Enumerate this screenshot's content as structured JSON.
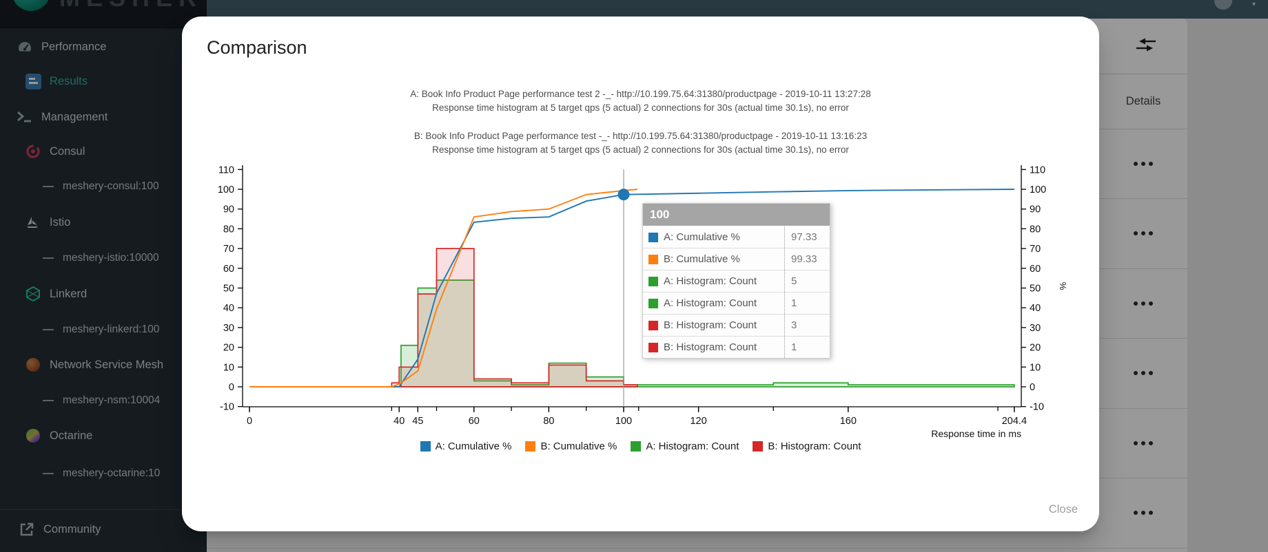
{
  "app": {
    "brand": "MESHERY",
    "sidebar": {
      "items": [
        {
          "label": "Performance",
          "icon": "gauge-icon",
          "level": 0,
          "active": false
        },
        {
          "label": "Results",
          "icon": "results-icon",
          "level": 1,
          "active": true
        },
        {
          "label": "Management",
          "icon": "terminal-icon",
          "level": 0,
          "active": false
        },
        {
          "label": "Consul",
          "icon": "consul-icon",
          "level": 1,
          "active": false
        },
        {
          "label": "meshery-consul:100",
          "icon": "dash-icon",
          "level": 2,
          "active": false
        },
        {
          "label": "Istio",
          "icon": "istio-icon",
          "level": 1,
          "active": false
        },
        {
          "label": "meshery-istio:10000",
          "icon": "dash-icon",
          "level": 2,
          "active": false
        },
        {
          "label": "Linkerd",
          "icon": "linkerd-icon",
          "level": 1,
          "active": false
        },
        {
          "label": "meshery-linkerd:100",
          "icon": "dash-icon",
          "level": 2,
          "active": false
        },
        {
          "label": "Network Service Mesh",
          "icon": "nsm-icon",
          "level": 1,
          "active": false
        },
        {
          "label": "meshery-nsm:10004",
          "icon": "dash-icon",
          "level": 2,
          "active": false
        },
        {
          "label": "Octarine",
          "icon": "octarine-icon",
          "level": 1,
          "active": false
        },
        {
          "label": "meshery-octarine:10",
          "icon": "dash-icon",
          "level": 2,
          "active": false
        }
      ],
      "footer_item": {
        "label": "Community",
        "icon": "external-link-icon"
      }
    },
    "results_table": {
      "column_header": "Details",
      "toolbar_icon": "compare-arrows-icon",
      "row_count": 6,
      "row_action_icon": "ellipsis-icon"
    }
  },
  "modal": {
    "title": "Comparison",
    "close_label": "Close"
  },
  "chart_data": {
    "type": "line+histogram",
    "titles": [
      "A: Book Info Product Page performance test 2 -_- http://10.199.75.64:31380/productpage - 2019-10-11 13:27:28",
      "Response time histogram at 5 target qps (5 actual) 2 connections for 30s (actual time 30.1s), no error",
      "B: Book Info Product Page performance test -_- http://10.199.75.64:31380/productpage - 2019-10-11 13:16:23",
      "Response time histogram at 5 target qps (5 actual) 2 connections for 30s (actual time 30.1s), no error"
    ],
    "x_axis": {
      "label": "Response time in ms",
      "domain": [
        -1.8,
        206.3
      ],
      "minor_ticks": [
        0,
        38,
        40,
        45,
        50,
        60,
        70,
        80,
        90,
        100,
        104,
        120,
        140,
        160,
        200,
        204.4
      ],
      "labeled_ticks": [
        {
          "value": 0,
          "label": "0"
        },
        {
          "value": 40,
          "label": "40"
        },
        {
          "value": 45,
          "label": "45"
        },
        {
          "value": 60,
          "label": "60"
        },
        {
          "value": 80,
          "label": "80"
        },
        {
          "value": 100,
          "label": "100"
        },
        {
          "value": 120,
          "label": "120"
        },
        {
          "value": 160,
          "label": "160"
        },
        {
          "value": 204.4,
          "label": "204.4"
        }
      ]
    },
    "y_axis": {
      "label": "%",
      "min": -10,
      "max": 110,
      "tick_step": 10,
      "sides": "both"
    },
    "series": [
      {
        "name": "A: Cumulative %",
        "type": "line",
        "color": "#1f77b4",
        "points": [
          [
            0,
            0
          ],
          [
            40,
            0
          ],
          [
            45,
            14
          ],
          [
            50,
            47.3
          ],
          [
            60,
            83.3
          ],
          [
            70,
            85.3
          ],
          [
            80,
            86
          ],
          [
            90,
            94
          ],
          [
            100,
            97.33
          ],
          [
            120,
            98
          ],
          [
            140,
            98.7
          ],
          [
            160,
            99.33
          ],
          [
            204.4,
            100
          ]
        ]
      },
      {
        "name": "B: Cumulative %",
        "type": "line",
        "color": "#ff7f0e",
        "points": [
          [
            0,
            0
          ],
          [
            38,
            0
          ],
          [
            40,
            1.33
          ],
          [
            45,
            8
          ],
          [
            50,
            39.3
          ],
          [
            60,
            86
          ],
          [
            70,
            88.7
          ],
          [
            80,
            90
          ],
          [
            90,
            97.33
          ],
          [
            100,
            99.33
          ],
          [
            103.7,
            100
          ]
        ]
      },
      {
        "name": "A: Histogram: Count",
        "type": "histogram",
        "color": "#2ca02c",
        "fill_opacity": 0.18,
        "buckets": [
          [
            40.5,
            45,
            21
          ],
          [
            45,
            50,
            50
          ],
          [
            50,
            60,
            54
          ],
          [
            60,
            70,
            3
          ],
          [
            70,
            80,
            1
          ],
          [
            80,
            90,
            12
          ],
          [
            90,
            100,
            5
          ],
          [
            100,
            120,
            1
          ],
          [
            120,
            140,
            1
          ],
          [
            140,
            160,
            2
          ],
          [
            160,
            200,
            1
          ],
          [
            200,
            204.4,
            1
          ]
        ]
      },
      {
        "name": "B: Histogram: Count",
        "type": "histogram",
        "color": "#d62728",
        "fill_opacity": 0.15,
        "buckets": [
          [
            38,
            40,
            2
          ],
          [
            40,
            45,
            10
          ],
          [
            45,
            50,
            47
          ],
          [
            50,
            60,
            70
          ],
          [
            60,
            70,
            4
          ],
          [
            70,
            80,
            2
          ],
          [
            80,
            90,
            11
          ],
          [
            90,
            100,
            3
          ],
          [
            100,
            103.7,
            1
          ]
        ]
      }
    ],
    "hover": {
      "x": 100,
      "dot_value": 97.33,
      "dot_color": "#1f77b4",
      "line_color": "#999999"
    },
    "tooltip": {
      "header": "100",
      "rows": [
        {
          "series": "A: Cumulative %",
          "color": "#1f77b4",
          "value": "97.33"
        },
        {
          "series": "B: Cumulative %",
          "color": "#ff7f0e",
          "value": "99.33"
        },
        {
          "series": "A: Histogram: Count",
          "color": "#2ca02c",
          "value": "5"
        },
        {
          "series": "A: Histogram: Count",
          "color": "#2ca02c",
          "value": "1"
        },
        {
          "series": "B: Histogram: Count",
          "color": "#d62728",
          "value": "3"
        },
        {
          "series": "B: Histogram: Count",
          "color": "#d62728",
          "value": "1"
        }
      ]
    },
    "legend_position": "bottom-center",
    "grid": false
  }
}
